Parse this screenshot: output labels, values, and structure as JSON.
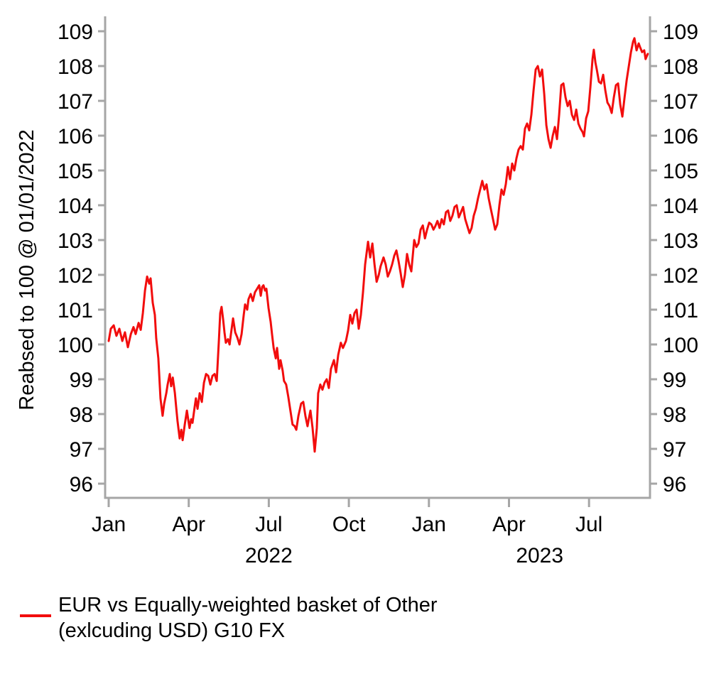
{
  "chart_data": {
    "type": "line",
    "title": "",
    "axis_color": "#a6a6a6",
    "text_color": "#000000",
    "grid": "off",
    "legend_position": "bottom-left",
    "y_axis": {
      "title": "Reabsed to 100 @ 01/01/2022",
      "min": 96,
      "max": 109,
      "ticks": [
        96,
        97,
        98,
        99,
        100,
        101,
        102,
        103,
        104,
        105,
        106,
        107,
        108,
        109
      ],
      "sides": [
        "left",
        "right"
      ]
    },
    "x_axis": {
      "unit": "months since 2022-01-01",
      "range_months": [
        0,
        20.3
      ],
      "tick_months": [
        0,
        3,
        6,
        9,
        12,
        15,
        18
      ],
      "tick_labels": [
        "Jan",
        "Apr",
        "Jul",
        "Oct",
        "Jan",
        "Apr",
        "Jul"
      ],
      "year_labels": [
        {
          "label": "2022",
          "center_month": 6.0
        },
        {
          "label": "2023",
          "center_month": 16.15
        }
      ]
    },
    "legend": {
      "line1": "EUR vs Equally-weighted basket of Other",
      "line2": "(exlcuding USD) G10 FX"
    },
    "series": [
      {
        "name": "EUR vs Equally-weighted basket of Other (exlcuding USD) G10 FX",
        "color": "#f20d0d",
        "points": [
          [
            0,
            100.1
          ],
          [
            0.08,
            100.45
          ],
          [
            0.19,
            100.55
          ],
          [
            0.29,
            100.25
          ],
          [
            0.4,
            100.45
          ],
          [
            0.51,
            100.1
          ],
          [
            0.61,
            100.35
          ],
          [
            0.72,
            99.92
          ],
          [
            0.83,
            100.3
          ],
          [
            0.93,
            100.5
          ],
          [
            1.01,
            100.3
          ],
          [
            1.12,
            100.62
          ],
          [
            1.2,
            100.42
          ],
          [
            1.28,
            100.9
          ],
          [
            1.36,
            101.55
          ],
          [
            1.44,
            101.95
          ],
          [
            1.52,
            101.75
          ],
          [
            1.57,
            101.9
          ],
          [
            1.65,
            101.2
          ],
          [
            1.73,
            100.85
          ],
          [
            1.78,
            100.18
          ],
          [
            1.86,
            99.6
          ],
          [
            1.94,
            98.45
          ],
          [
            2.02,
            97.95
          ],
          [
            2.08,
            98.3
          ],
          [
            2.16,
            98.6
          ],
          [
            2.21,
            98.85
          ],
          [
            2.29,
            99.15
          ],
          [
            2.34,
            98.8
          ],
          [
            2.4,
            99.05
          ],
          [
            2.48,
            98.6
          ],
          [
            2.53,
            98.2
          ],
          [
            2.58,
            97.8
          ],
          [
            2.66,
            97.3
          ],
          [
            2.72,
            97.55
          ],
          [
            2.77,
            97.25
          ],
          [
            2.85,
            97.7
          ],
          [
            2.93,
            98.1
          ],
          [
            2.98,
            97.85
          ],
          [
            3.03,
            97.6
          ],
          [
            3.09,
            97.85
          ],
          [
            3.14,
            97.75
          ],
          [
            3.22,
            98.2
          ],
          [
            3.27,
            98.45
          ],
          [
            3.33,
            98.15
          ],
          [
            3.41,
            98.6
          ],
          [
            3.49,
            98.35
          ],
          [
            3.57,
            98.9
          ],
          [
            3.65,
            99.15
          ],
          [
            3.73,
            99.1
          ],
          [
            3.81,
            98.85
          ],
          [
            3.89,
            99.1
          ],
          [
            3.97,
            99.15
          ],
          [
            4.05,
            98.95
          ],
          [
            4.13,
            100.1
          ],
          [
            4.18,
            100.9
          ],
          [
            4.23,
            101.08
          ],
          [
            4.29,
            100.7
          ],
          [
            4.34,
            100.35
          ],
          [
            4.39,
            100.05
          ],
          [
            4.47,
            100.15
          ],
          [
            4.53,
            100
          ],
          [
            4.58,
            100.3
          ],
          [
            4.66,
            100.75
          ],
          [
            4.74,
            100.35
          ],
          [
            4.82,
            100.2
          ],
          [
            4.9,
            100
          ],
          [
            4.98,
            100.3
          ],
          [
            5.06,
            100.85
          ],
          [
            5.11,
            101.15
          ],
          [
            5.19,
            101
          ],
          [
            5.24,
            101.3
          ],
          [
            5.32,
            101.45
          ],
          [
            5.4,
            101.25
          ],
          [
            5.48,
            101.5
          ],
          [
            5.56,
            101.6
          ],
          [
            5.64,
            101.7
          ],
          [
            5.7,
            101.4
          ],
          [
            5.75,
            101.65
          ],
          [
            5.8,
            101.7
          ],
          [
            5.86,
            101.55
          ],
          [
            5.91,
            101.6
          ],
          [
            5.99,
            101.05
          ],
          [
            6.07,
            100.65
          ],
          [
            6.12,
            100.3
          ],
          [
            6.18,
            99.9
          ],
          [
            6.26,
            99.6
          ],
          [
            6.31,
            99.9
          ],
          [
            6.39,
            99.3
          ],
          [
            6.44,
            99.55
          ],
          [
            6.52,
            99.25
          ],
          [
            6.57,
            98.95
          ],
          [
            6.65,
            98.85
          ],
          [
            6.73,
            98.5
          ],
          [
            6.81,
            98.1
          ],
          [
            6.89,
            97.7
          ],
          [
            6.97,
            97.65
          ],
          [
            7.03,
            97.55
          ],
          [
            7.11,
            97.95
          ],
          [
            7.21,
            98.3
          ],
          [
            7.29,
            98.35
          ],
          [
            7.37,
            97.95
          ],
          [
            7.45,
            97.65
          ],
          [
            7.51,
            97.9
          ],
          [
            7.56,
            98.1
          ],
          [
            7.64,
            97.6
          ],
          [
            7.72,
            96.92
          ],
          [
            7.8,
            97.6
          ],
          [
            7.85,
            98.6
          ],
          [
            7.93,
            98.85
          ],
          [
            8.01,
            98.7
          ],
          [
            8.09,
            98.9
          ],
          [
            8.17,
            99
          ],
          [
            8.25,
            98.75
          ],
          [
            8.33,
            99.3
          ],
          [
            8.44,
            99.55
          ],
          [
            8.52,
            99.2
          ],
          [
            8.6,
            99.7
          ],
          [
            8.7,
            100.05
          ],
          [
            8.78,
            99.9
          ],
          [
            8.89,
            100.1
          ],
          [
            8.97,
            100.4
          ],
          [
            9.05,
            100.85
          ],
          [
            9.13,
            100.6
          ],
          [
            9.21,
            100.9
          ],
          [
            9.29,
            101
          ],
          [
            9.37,
            100.45
          ],
          [
            9.45,
            100.85
          ],
          [
            9.53,
            101.5
          ],
          [
            9.61,
            102.3
          ],
          [
            9.72,
            102.95
          ],
          [
            9.8,
            102.5
          ],
          [
            9.88,
            102.9
          ],
          [
            9.96,
            102.3
          ],
          [
            10.04,
            101.8
          ],
          [
            10.12,
            102
          ],
          [
            10.19,
            102.25
          ],
          [
            10.3,
            102.5
          ],
          [
            10.38,
            102.3
          ],
          [
            10.46,
            101.95
          ],
          [
            10.54,
            102.1
          ],
          [
            10.62,
            102.3
          ],
          [
            10.7,
            102.55
          ],
          [
            10.78,
            102.7
          ],
          [
            10.86,
            102.4
          ],
          [
            10.94,
            102.05
          ],
          [
            11.02,
            101.65
          ],
          [
            11.1,
            102
          ],
          [
            11.18,
            102.6
          ],
          [
            11.26,
            102.3
          ],
          [
            11.34,
            102.1
          ],
          [
            11.45,
            103
          ],
          [
            11.53,
            102.8
          ],
          [
            11.61,
            102.9
          ],
          [
            11.69,
            103.3
          ],
          [
            11.77,
            103.42
          ],
          [
            11.85,
            103.05
          ],
          [
            11.93,
            103.3
          ],
          [
            12.01,
            103.5
          ],
          [
            12.09,
            103.45
          ],
          [
            12.17,
            103.3
          ],
          [
            12.24,
            103.4
          ],
          [
            12.32,
            103.55
          ],
          [
            12.4,
            103.35
          ],
          [
            12.48,
            103.6
          ],
          [
            12.56,
            103.45
          ],
          [
            12.64,
            103.8
          ],
          [
            12.72,
            103.85
          ],
          [
            12.8,
            103.55
          ],
          [
            12.88,
            103.7
          ],
          [
            12.96,
            103.95
          ],
          [
            13.04,
            104
          ],
          [
            13.12,
            103.65
          ],
          [
            13.2,
            103.8
          ],
          [
            13.28,
            103.95
          ],
          [
            13.36,
            103.6
          ],
          [
            13.44,
            103.4
          ],
          [
            13.52,
            103.2
          ],
          [
            13.6,
            103.35
          ],
          [
            13.68,
            103.7
          ],
          [
            13.76,
            103.9
          ],
          [
            13.84,
            104.2
          ],
          [
            13.92,
            104.45
          ],
          [
            14,
            104.7
          ],
          [
            14.08,
            104.45
          ],
          [
            14.16,
            104.6
          ],
          [
            14.24,
            104.2
          ],
          [
            14.32,
            103.9
          ],
          [
            14.4,
            103.6
          ],
          [
            14.48,
            103.3
          ],
          [
            14.56,
            103.45
          ],
          [
            14.64,
            104
          ],
          [
            14.72,
            104.45
          ],
          [
            14.8,
            104.3
          ],
          [
            14.88,
            104.6
          ],
          [
            14.96,
            105.1
          ],
          [
            15.04,
            104.75
          ],
          [
            15.12,
            105.2
          ],
          [
            15.2,
            105
          ],
          [
            15.28,
            105.35
          ],
          [
            15.36,
            105.6
          ],
          [
            15.44,
            105.7
          ],
          [
            15.52,
            105.6
          ],
          [
            15.6,
            106.2
          ],
          [
            15.68,
            106.35
          ],
          [
            15.76,
            106.15
          ],
          [
            15.84,
            106.6
          ],
          [
            15.92,
            107.3
          ],
          [
            16,
            107.9
          ],
          [
            16.08,
            108
          ],
          [
            16.16,
            107.7
          ],
          [
            16.24,
            107.9
          ],
          [
            16.32,
            107.2
          ],
          [
            16.4,
            106.3
          ],
          [
            16.48,
            105.9
          ],
          [
            16.56,
            105.65
          ],
          [
            16.64,
            106
          ],
          [
            16.72,
            106.25
          ],
          [
            16.8,
            105.9
          ],
          [
            16.88,
            106.6
          ],
          [
            16.96,
            107.45
          ],
          [
            17.04,
            107.5
          ],
          [
            17.12,
            107.1
          ],
          [
            17.2,
            106.85
          ],
          [
            17.28,
            107
          ],
          [
            17.36,
            106.6
          ],
          [
            17.44,
            106.45
          ],
          [
            17.52,
            106.75
          ],
          [
            17.6,
            106.35
          ],
          [
            17.68,
            106.2
          ],
          [
            17.76,
            106.1
          ],
          [
            17.81,
            105.98
          ],
          [
            17.89,
            106.5
          ],
          [
            17.97,
            106.7
          ],
          [
            18.05,
            107.4
          ],
          [
            18.13,
            108.2
          ],
          [
            18.18,
            108.47
          ],
          [
            18.24,
            108.1
          ],
          [
            18.29,
            107.9
          ],
          [
            18.37,
            107.55
          ],
          [
            18.45,
            107.5
          ],
          [
            18.53,
            107.75
          ],
          [
            18.61,
            107.3
          ],
          [
            18.69,
            106.95
          ],
          [
            18.77,
            106.85
          ],
          [
            18.85,
            106.65
          ],
          [
            18.93,
            107.1
          ],
          [
            19.01,
            107.45
          ],
          [
            19.09,
            107.5
          ],
          [
            19.17,
            106.9
          ],
          [
            19.25,
            106.55
          ],
          [
            19.33,
            107.1
          ],
          [
            19.41,
            107.6
          ],
          [
            19.49,
            108
          ],
          [
            19.57,
            108.4
          ],
          [
            19.65,
            108.7
          ],
          [
            19.7,
            108.8
          ],
          [
            19.78,
            108.45
          ],
          [
            19.86,
            108.65
          ],
          [
            19.91,
            108.55
          ],
          [
            19.99,
            108.4
          ],
          [
            20.07,
            108.45
          ],
          [
            20.12,
            108.2
          ],
          [
            20.2,
            108.35
          ]
        ]
      }
    ]
  }
}
